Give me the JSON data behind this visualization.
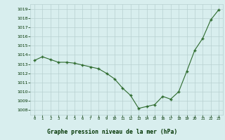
{
  "x": [
    0,
    1,
    2,
    3,
    4,
    5,
    6,
    7,
    8,
    9,
    10,
    11,
    12,
    13,
    14,
    15,
    16,
    17,
    18,
    19,
    20,
    21,
    22,
    23
  ],
  "y": [
    1013.4,
    1013.8,
    1013.5,
    1013.2,
    1013.2,
    1013.1,
    1012.9,
    1012.7,
    1012.5,
    1012.0,
    1011.4,
    1010.4,
    1009.6,
    1008.2,
    1008.4,
    1008.6,
    1009.5,
    1009.2,
    1010.0,
    1012.2,
    1014.5,
    1015.8,
    1017.8,
    1018.9
  ],
  "line_color": "#2d6a2d",
  "marker": "+",
  "bg_color": "#d8eeee",
  "grid_color": "#b8d0d0",
  "xlabel": "Graphe pression niveau de la mer (hPa)",
  "xlabel_color": "#003300",
  "xlabel_bg": "#88bb88",
  "tick_color": "#003300",
  "ylim": [
    1007.5,
    1019.5
  ],
  "xlim": [
    -0.5,
    23.5
  ],
  "yticks": [
    1008,
    1009,
    1010,
    1011,
    1012,
    1013,
    1014,
    1015,
    1016,
    1017,
    1018,
    1019
  ],
  "xticks": [
    0,
    1,
    2,
    3,
    4,
    5,
    6,
    7,
    8,
    9,
    10,
    11,
    12,
    13,
    14,
    15,
    16,
    17,
    18,
    19,
    20,
    21,
    22,
    23
  ]
}
